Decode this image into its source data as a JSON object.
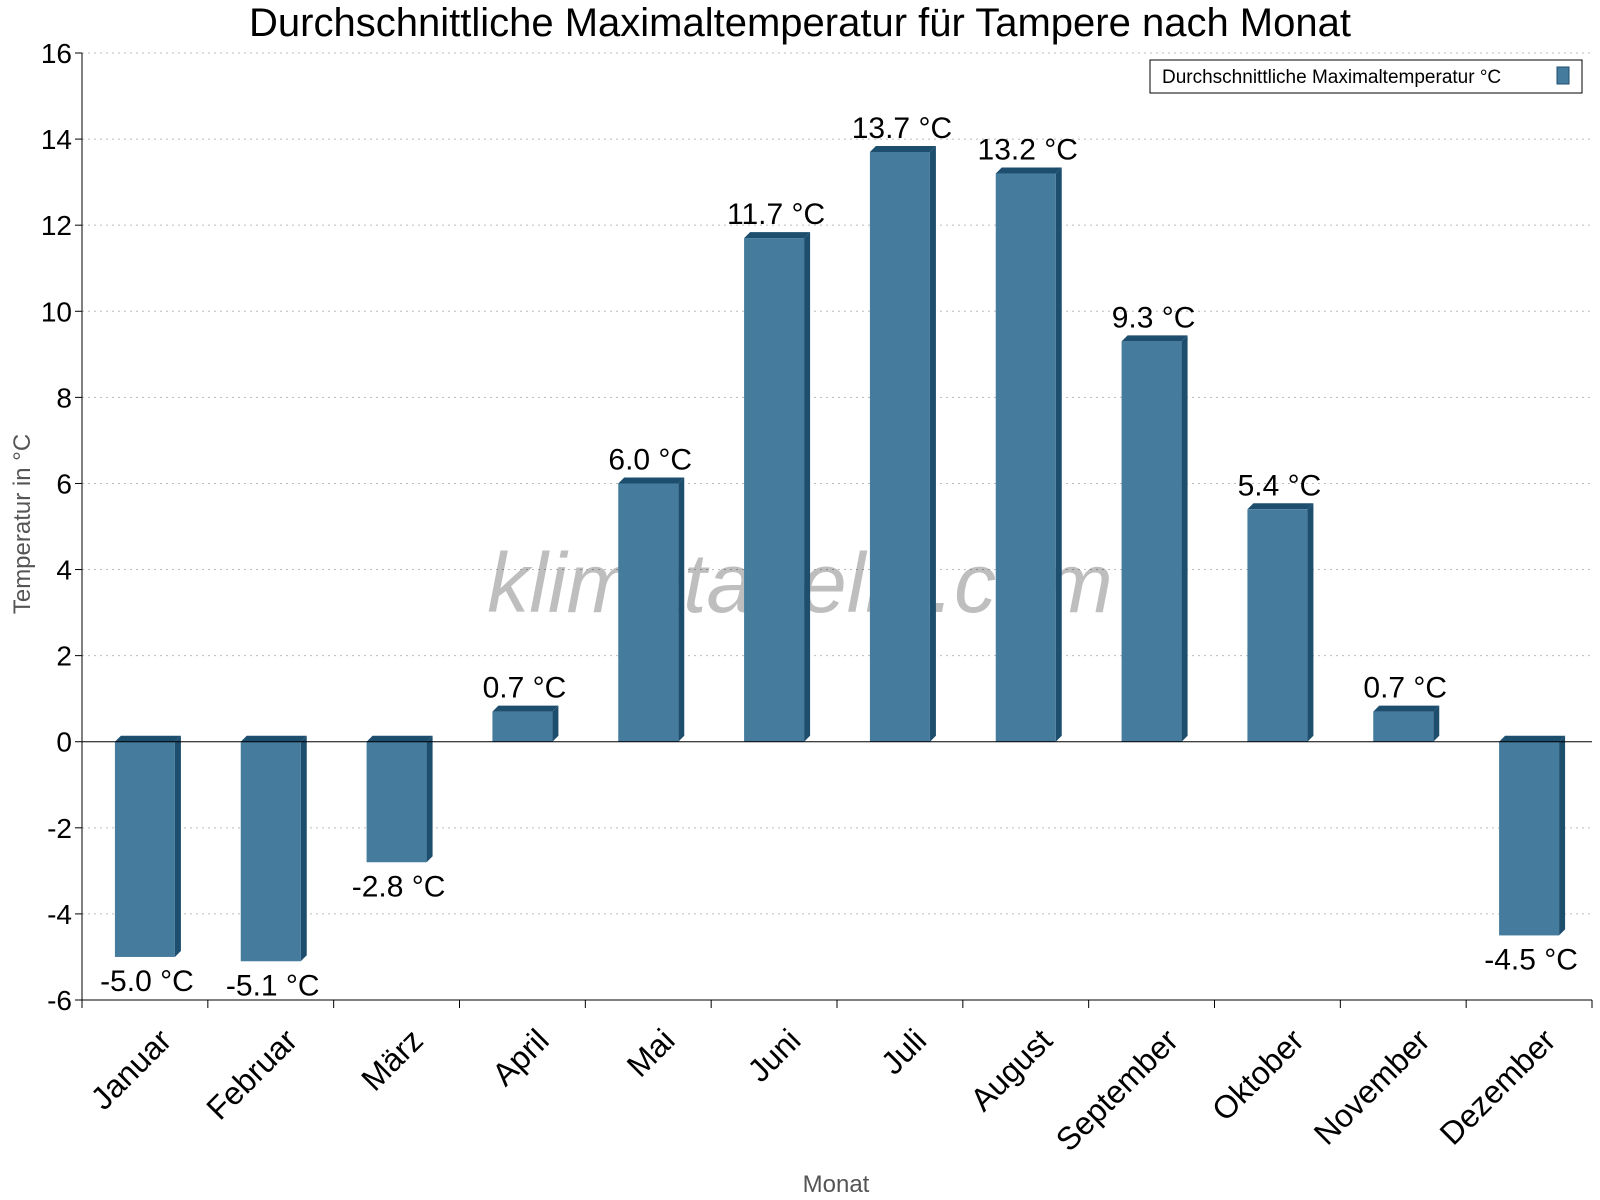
{
  "chart_data": {
    "type": "bar",
    "title": "Durchschnittliche Maximaltemperatur für Tampere nach Monat",
    "xlabel": "Monat",
    "ylabel": "Temperatur in °C",
    "categories": [
      "Januar",
      "Februar",
      "März",
      "April",
      "Mai",
      "Juni",
      "Juli",
      "August",
      "September",
      "Oktober",
      "November",
      "Dezember"
    ],
    "series": [
      {
        "name": "Durchschnittliche Maximaltemperatur °C",
        "values": [
          -5.0,
          -5.1,
          -2.8,
          0.7,
          6.0,
          11.7,
          13.7,
          13.2,
          9.3,
          5.4,
          0.7,
          -4.5
        ],
        "labels": [
          "-5.0 °C",
          "-5.1 °C",
          "-2.8 °C",
          "0.7 °C",
          "6.0 °C",
          "11.7 °C",
          "13.7 °C",
          "13.2 °C",
          "9.3 °C",
          "5.4 °C",
          "0.7 °C",
          "-4.5 °C"
        ],
        "color": "#457b9d",
        "edge_color": "#1d4e6e"
      }
    ],
    "ylim": [
      -6,
      16
    ],
    "yticks": [
      "-6",
      "-4",
      "-2",
      "0",
      "2",
      "4",
      "6",
      "8",
      "10",
      "12",
      "14",
      "16"
    ],
    "grid": true,
    "legend": "top-right",
    "watermark": "klimatabelle.com"
  }
}
